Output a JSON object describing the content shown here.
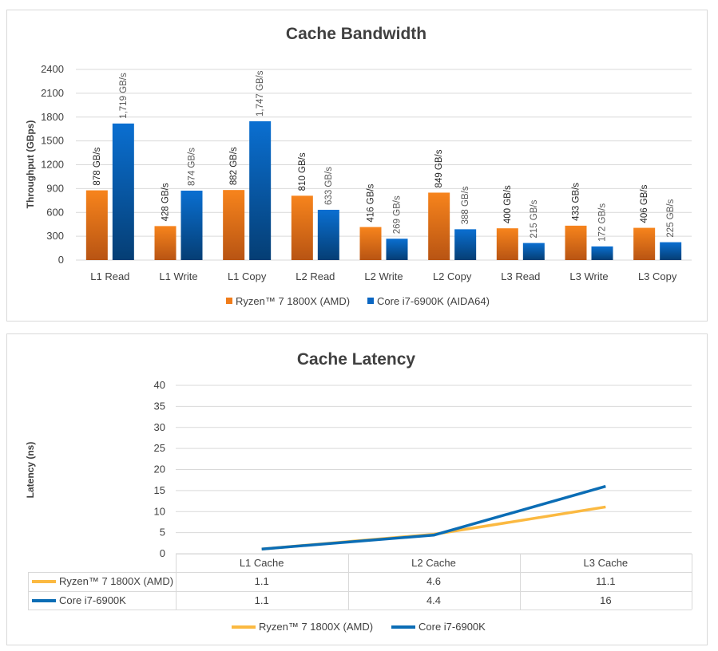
{
  "chart_data": [
    {
      "type": "bar",
      "title": "Cache Bandwidth",
      "xlabel": "",
      "ylabel": "Throughput (GBps)",
      "ylim": [
        0,
        2400
      ],
      "yticks": [
        0,
        300,
        600,
        900,
        1200,
        1500,
        1800,
        2100,
        2400
      ],
      "grid": true,
      "legend_position": "bottom",
      "categories": [
        "L1 Read",
        "L1 Write",
        "L1 Copy",
        "L2 Read",
        "L2 Write",
        "L2 Copy",
        "L3 Read",
        "L3 Write",
        "L3 Copy"
      ],
      "series": [
        {
          "name": "Ryzen™ 7 1800X (AMD)",
          "color": "#f07c1a",
          "values": [
            878,
            428,
            882,
            810,
            416,
            849,
            400,
            433,
            406
          ],
          "labels": [
            "878 GB/s",
            "428 GB/s",
            "882 GB/s",
            "810 GB/s",
            "416 GB/s",
            "849 GB/s",
            "400 GB/s",
            "433 GB/s",
            "406 GB/s"
          ]
        },
        {
          "name": "Core i7-6900K (AIDA64)",
          "color": "#0a66c2",
          "values": [
            1719,
            874,
            1747,
            633,
            269,
            388,
            215,
            172,
            225
          ],
          "labels": [
            "1,719 GB/s",
            "874 GB/s",
            "1,747 GB/s",
            "633 GB/s",
            "269 GB/s",
            "388 GB/s",
            "215 GB/s",
            "172 GB/s",
            "225 GB/s"
          ]
        }
      ]
    },
    {
      "type": "line",
      "title": "Cache Latency",
      "xlabel": "",
      "ylabel": "Latency (ns)",
      "ylim": [
        0,
        40
      ],
      "yticks": [
        0,
        5,
        10,
        15,
        20,
        25,
        30,
        35,
        40
      ],
      "grid": true,
      "legend_position": "bottom",
      "data_table": true,
      "categories": [
        "L1 Cache",
        "L2 Cache",
        "L3 Cache"
      ],
      "series": [
        {
          "name": "Ryzen™ 7 1800X (AMD)",
          "color": "#fbb941",
          "values": [
            1.1,
            4.6,
            11.1
          ]
        },
        {
          "name": "Core i7-6900K",
          "color": "#0b6db5",
          "values": [
            1.1,
            4.4,
            16
          ]
        }
      ]
    }
  ]
}
